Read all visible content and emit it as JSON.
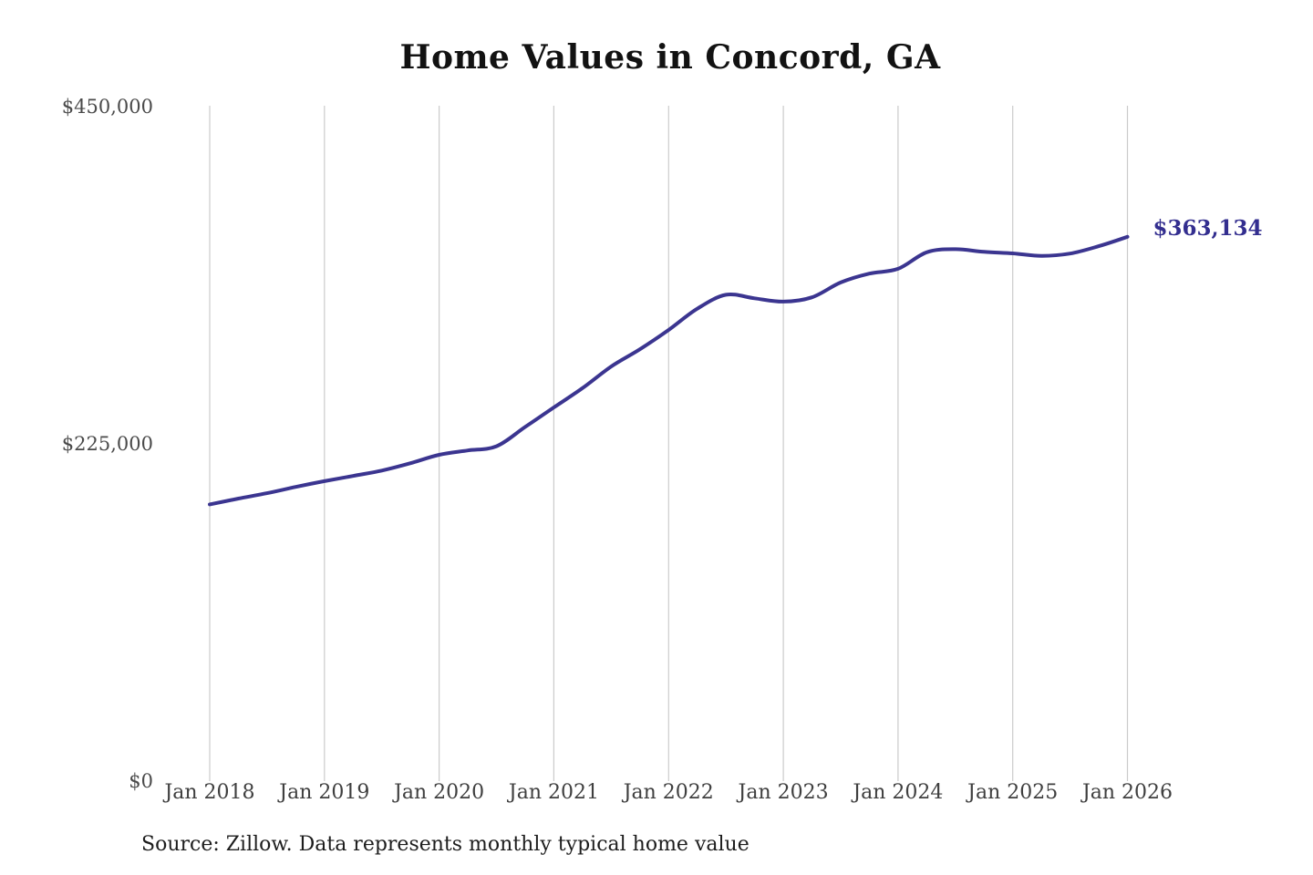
{
  "title": "Home Values in Concord, GA",
  "source_note": "Source: Zillow. Data represents monthly typical home value",
  "colors": {
    "line": "#3b3590",
    "end_label": "#332e8f",
    "grid": "#cbcbcb",
    "axis_text": "#3f3f3f",
    "title_text": "#121212",
    "background": "#ffffff"
  },
  "chart_data": {
    "type": "line",
    "title": "Home Values in Concord, GA",
    "xlabel": "",
    "ylabel": "",
    "ylim": [
      0,
      450000
    ],
    "grid": "vertical-only",
    "legend": "none",
    "x_tick_labels": [
      "Jan 2018",
      "Jan 2019",
      "Jan 2020",
      "Jan 2021",
      "Jan 2022",
      "Jan 2023",
      "Jan 2024",
      "Jan 2025",
      "Jan 2026"
    ],
    "y_ticks": [
      {
        "label": "$0",
        "value": 0
      },
      {
        "label": "$225,000",
        "value": 225000
      },
      {
        "label": "$450,000",
        "value": 450000
      }
    ],
    "x": [
      2018.0,
      2018.25,
      2018.5,
      2018.75,
      2019.0,
      2019.25,
      2019.5,
      2019.75,
      2020.0,
      2020.25,
      2020.5,
      2020.75,
      2021.0,
      2021.25,
      2021.5,
      2021.75,
      2022.0,
      2022.25,
      2022.5,
      2022.75,
      2023.0,
      2023.25,
      2023.5,
      2023.75,
      2024.0,
      2024.25,
      2024.5,
      2024.75,
      2025.0,
      2025.25,
      2025.5,
      2025.75,
      2026.0
    ],
    "series": [
      {
        "name": "Typical home value",
        "values": [
          184600,
          188500,
          192100,
          196300,
          200100,
          203600,
          207200,
          212100,
          217700,
          220600,
          223400,
          236300,
          249300,
          262200,
          276600,
          288100,
          301000,
          315200,
          324500,
          322100,
          319900,
          322800,
          332700,
          338600,
          341800,
          352800,
          354900,
          353100,
          352100,
          350400,
          352000,
          356900,
          363134
        ]
      }
    ],
    "annotation": {
      "text": "$363,134",
      "value": 363134,
      "position": "line-end"
    }
  }
}
